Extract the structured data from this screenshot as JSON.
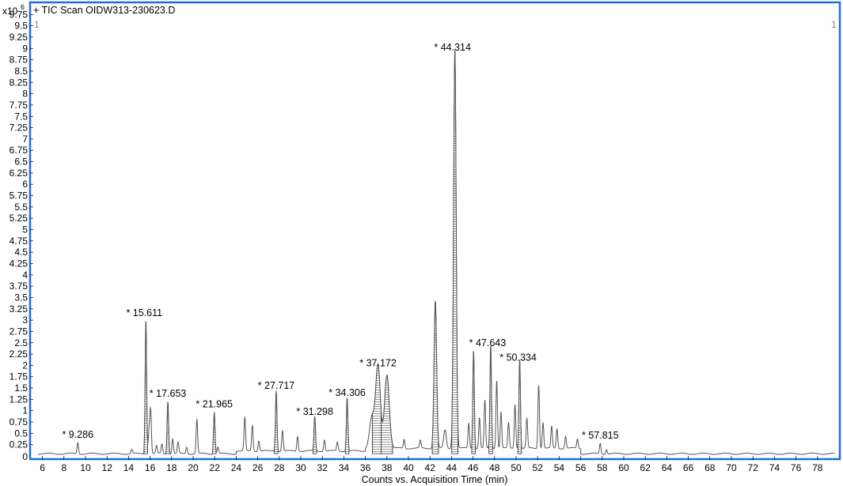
{
  "chart_data": {
    "type": "line",
    "title": "+ TIC Scan OIDW313-230623.D",
    "xlabel": "Counts vs. Acquisition Time (min)",
    "ylabel": "",
    "y_multiplier": "x10",
    "y_exponent": "6",
    "panel_index_left": "1",
    "panel_index_right": "1",
    "xlim": [
      5.0,
      80.0
    ],
    "ylim": [
      0,
      10.0
    ],
    "x_ticks": [
      "6",
      "8",
      "10",
      "12",
      "14",
      "16",
      "18",
      "20",
      "22",
      "24",
      "26",
      "28",
      "30",
      "32",
      "34",
      "36",
      "38",
      "40",
      "42",
      "44",
      "46",
      "48",
      "50",
      "52",
      "54",
      "56",
      "58",
      "60",
      "62",
      "64",
      "66",
      "68",
      "70",
      "72",
      "74",
      "76",
      "78"
    ],
    "y_ticks": [
      "0.25",
      "0.5",
      "0.75",
      "1",
      "1.25",
      "1.5",
      "1.75",
      "2",
      "2.25",
      "2.5",
      "2.75",
      "3",
      "3.25",
      "3.5",
      "3.75",
      "4",
      "4.25",
      "4.5",
      "4.75",
      "5",
      "5.25",
      "5.5",
      "5.75",
      "6",
      "6.25",
      "6.5",
      "6.75",
      "7",
      "7.25",
      "7.5",
      "7.75",
      "8",
      "8.25",
      "8.5",
      "8.75",
      "9",
      "9.25",
      "9.5",
      "9.75"
    ],
    "y_tick_zero": "0",
    "baseline": 0.05,
    "peaks": [
      {
        "t": 9.286,
        "h": 0.3,
        "label": "* 9.286"
      },
      {
        "t": 14.3,
        "h": 0.14,
        "label": ""
      },
      {
        "t": 15.611,
        "h": 2.98,
        "label": "* 15.611"
      },
      {
        "t": 15.9,
        "h": 0.55,
        "label": ""
      },
      {
        "t": 16.05,
        "h": 1.02,
        "label": ""
      },
      {
        "t": 16.6,
        "h": 0.22,
        "label": ""
      },
      {
        "t": 17.1,
        "h": 0.26,
        "label": ""
      },
      {
        "t": 17.653,
        "h": 1.2,
        "label": "* 17.653"
      },
      {
        "t": 18.1,
        "h": 0.38,
        "label": ""
      },
      {
        "t": 18.6,
        "h": 0.3,
        "label": ""
      },
      {
        "t": 19.4,
        "h": 0.2,
        "label": ""
      },
      {
        "t": 20.35,
        "h": 0.8,
        "label": ""
      },
      {
        "t": 21.965,
        "h": 0.97,
        "label": "* 21.965"
      },
      {
        "t": 22.3,
        "h": 0.2,
        "label": ""
      },
      {
        "t": 24.8,
        "h": 0.78,
        "label": ""
      },
      {
        "t": 25.5,
        "h": 0.62,
        "label": ""
      },
      {
        "t": 26.1,
        "h": 0.28,
        "label": ""
      },
      {
        "t": 27.717,
        "h": 1.38,
        "label": "* 27.717"
      },
      {
        "t": 28.3,
        "h": 0.5,
        "label": ""
      },
      {
        "t": 29.7,
        "h": 0.38,
        "label": ""
      },
      {
        "t": 31.298,
        "h": 0.8,
        "label": "* 31.298"
      },
      {
        "t": 32.2,
        "h": 0.3,
        "label": ""
      },
      {
        "t": 33.4,
        "h": 0.25,
        "label": ""
      },
      {
        "t": 34.306,
        "h": 1.22,
        "label": "* 34.306"
      },
      {
        "t": 36.6,
        "h": 0.72,
        "label": ""
      },
      {
        "t": 37.172,
        "h": 1.88,
        "label": "* 37.172"
      },
      {
        "t": 38.0,
        "h": 1.68,
        "label": ""
      },
      {
        "t": 39.6,
        "h": 0.25,
        "label": ""
      },
      {
        "t": 41.1,
        "h": 0.22,
        "label": ""
      },
      {
        "t": 42.5,
        "h": 3.3,
        "label": ""
      },
      {
        "t": 43.4,
        "h": 0.45,
        "label": ""
      },
      {
        "t": 44.314,
        "h": 8.85,
        "label": "* 44.314"
      },
      {
        "t": 45.6,
        "h": 0.6,
        "label": ""
      },
      {
        "t": 46.05,
        "h": 2.2,
        "label": ""
      },
      {
        "t": 46.6,
        "h": 0.72,
        "label": ""
      },
      {
        "t": 47.1,
        "h": 1.1,
        "label": ""
      },
      {
        "t": 47.643,
        "h": 2.32,
        "label": "* 47.643"
      },
      {
        "t": 48.2,
        "h": 1.55,
        "label": ""
      },
      {
        "t": 48.6,
        "h": 0.85,
        "label": ""
      },
      {
        "t": 49.3,
        "h": 0.6,
        "label": ""
      },
      {
        "t": 49.9,
        "h": 1.02,
        "label": ""
      },
      {
        "t": 50.334,
        "h": 2.0,
        "label": "* 50.334"
      },
      {
        "t": 51.0,
        "h": 0.7,
        "label": ""
      },
      {
        "t": 52.1,
        "h": 1.45,
        "label": ""
      },
      {
        "t": 52.5,
        "h": 0.62,
        "label": ""
      },
      {
        "t": 53.3,
        "h": 0.52,
        "label": ""
      },
      {
        "t": 53.8,
        "h": 0.48,
        "label": ""
      },
      {
        "t": 54.6,
        "h": 0.32,
        "label": ""
      },
      {
        "t": 55.7,
        "h": 0.25,
        "label": ""
      },
      {
        "t": 57.815,
        "h": 0.28,
        "label": "* 57.815"
      },
      {
        "t": 58.4,
        "h": 0.15,
        "label": ""
      }
    ],
    "shaded_peaks": [
      15.611,
      17.653,
      21.965,
      27.717,
      31.298,
      34.306,
      37.172,
      38.0,
      42.5,
      44.314,
      46.05,
      47.643,
      50.334
    ],
    "grid": false,
    "legend": "none"
  },
  "style": {
    "frame_color": "#1f6fd6",
    "trace_color": "#555555",
    "label_color": "#000000",
    "hatch_color": "#888888"
  }
}
